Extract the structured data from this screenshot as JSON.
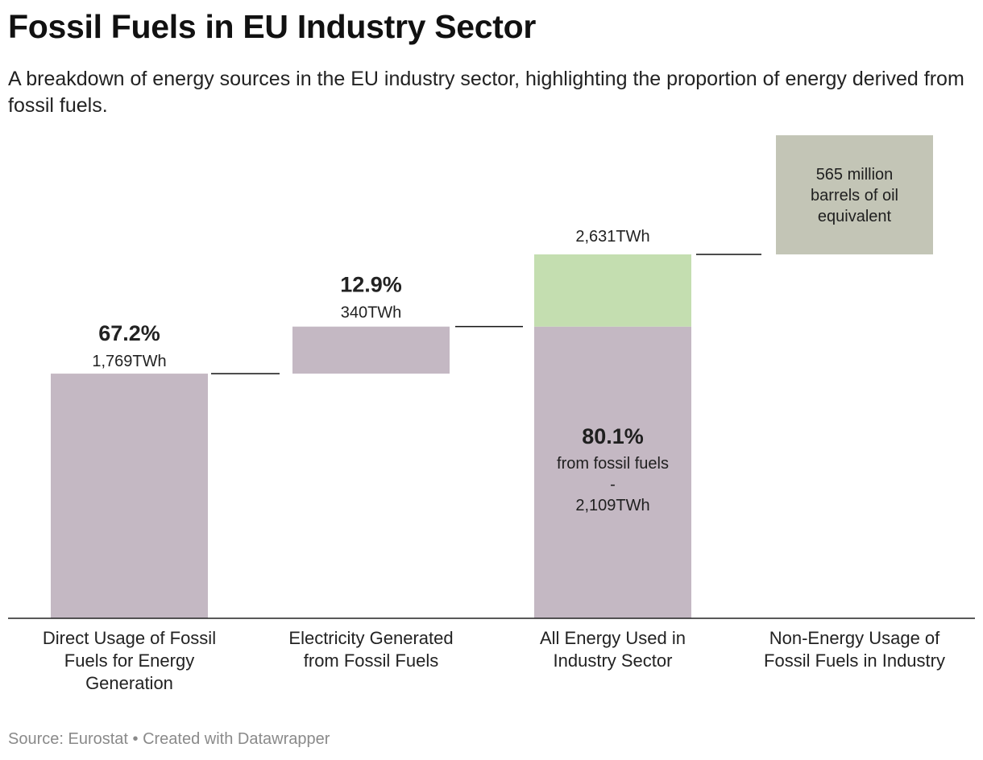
{
  "title": "Fossil Fuels in EU Industry Sector",
  "subtitle": "A breakdown of energy sources in the EU industry sector, highlighting the proportion of energy derived from fossil fuels.",
  "source": "Source: Eurostat • Created with Datawrapper",
  "colors": {
    "fossil": "#c4b8c3",
    "other": "#c4deb0",
    "nonenergy": "#c3c5b6",
    "axis": "#222222",
    "connector": "#111111"
  },
  "chart_data": {
    "type": "waterfall",
    "unit": "TWh",
    "ylim": [
      0,
      3310
    ],
    "categories": [
      "Direct Usage of Fossil Fuels for Energy Generation",
      "Electricity Generated from Fossil Fuels",
      "All Energy Used in Industry Sector",
      "Non-Energy Usage of Fossil Fuels in Industry"
    ],
    "category_lines": [
      [
        "Direct Usage of Fossil",
        "Fuels for Energy",
        "Generation"
      ],
      [
        "Electricity Generated",
        "from Fossil Fuels"
      ],
      [
        "All Energy Used in",
        "Industry Sector"
      ],
      [
        "Non-Energy Usage of",
        "Fossil Fuels in Industry"
      ]
    ],
    "bars": [
      {
        "name": "direct-usage",
        "start": 0,
        "end": 1769,
        "pct_label": "67.2%",
        "value_label": "1,769TWh"
      },
      {
        "name": "electricity",
        "start": 1769,
        "end": 2109,
        "pct_label": "12.9%",
        "value_label": "340TWh"
      },
      {
        "name": "all-energy-fossil",
        "start": 0,
        "end": 2109,
        "inner_pct": "80.1%",
        "inner_lines": [
          "from fossil fuels",
          "-",
          "2,109TWh"
        ]
      },
      {
        "name": "all-energy-other",
        "start": 2109,
        "end": 2631,
        "value_label": "2,631TWh"
      },
      {
        "name": "non-energy",
        "start": 2631,
        "end": 3497,
        "box_lines": [
          "565 million",
          "barrels of oil",
          "equivalent"
        ]
      }
    ],
    "totals": {
      "fossil_energy_twh": 2109,
      "all_energy_twh": 2631,
      "non_energy_boe": "565 million barrels of oil equivalent"
    }
  }
}
